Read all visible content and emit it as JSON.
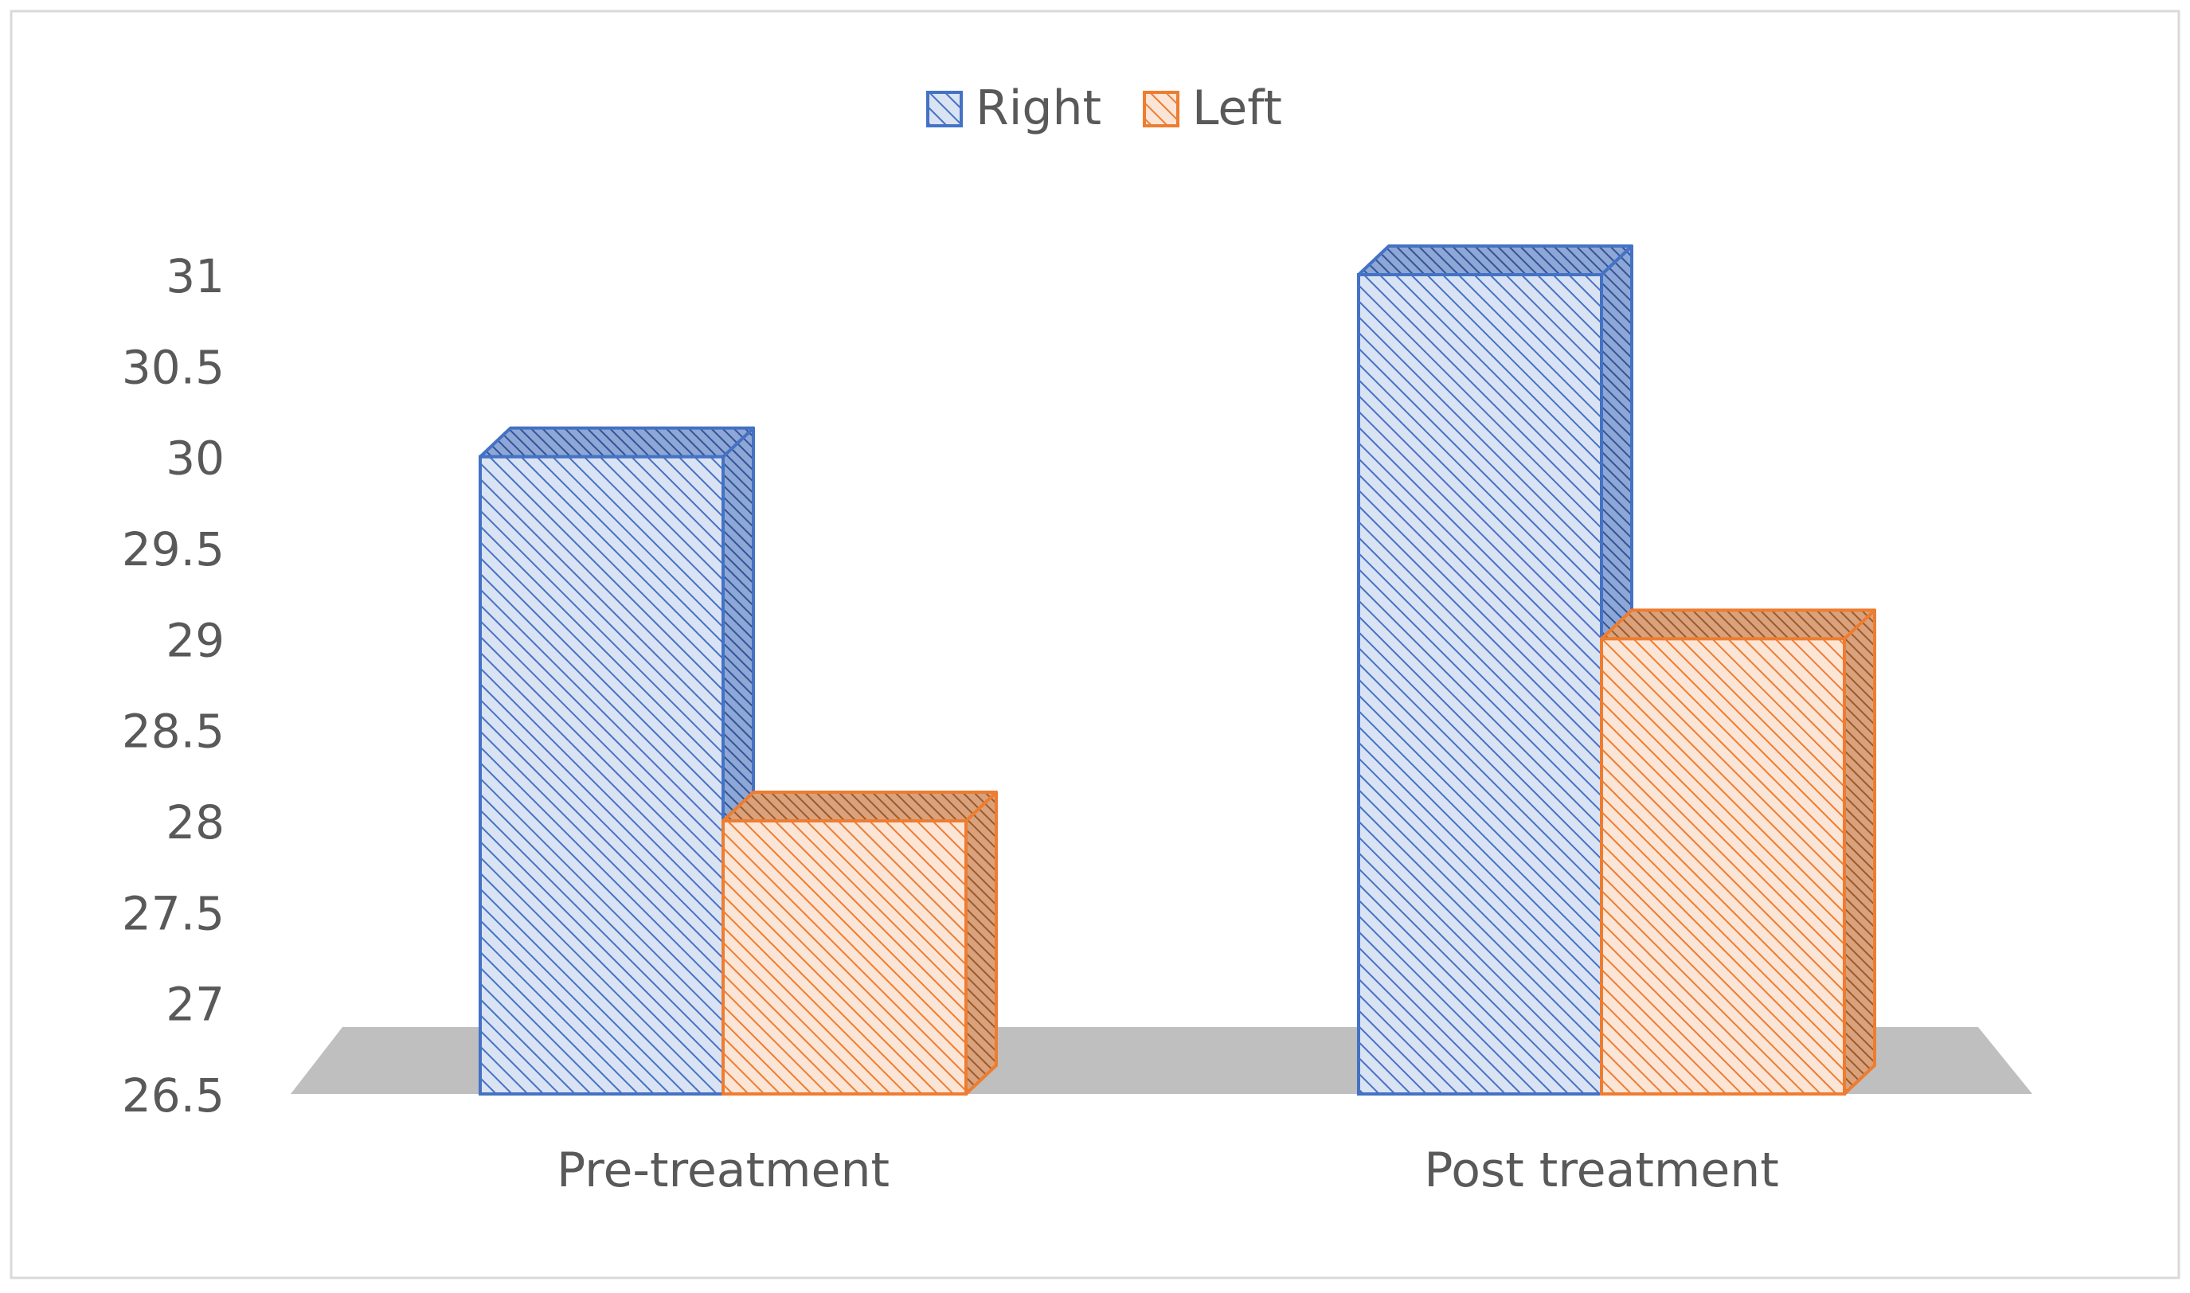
{
  "chart_data": {
    "type": "bar",
    "title": "",
    "xlabel": "",
    "ylabel": "",
    "categories": [
      "Pre-treatment",
      "Post treatment"
    ],
    "series": [
      {
        "name": "Right",
        "values": [
          30.0,
          31.0
        ],
        "color": "#4472C4",
        "fill": "#DAE3F3"
      },
      {
        "name": "Left",
        "values": [
          28.0,
          29.0
        ],
        "color": "#ED7D31",
        "fill": "#FBE5D6"
      }
    ],
    "ylim": [
      26.5,
      31
    ],
    "yticks": [
      "26.5",
      "27",
      "27.5",
      "28",
      "28.5",
      "29",
      "29.5",
      "30",
      "30.5",
      "31"
    ],
    "legend_position": "top",
    "gridlines": false,
    "style": "3d-column-hatched"
  }
}
